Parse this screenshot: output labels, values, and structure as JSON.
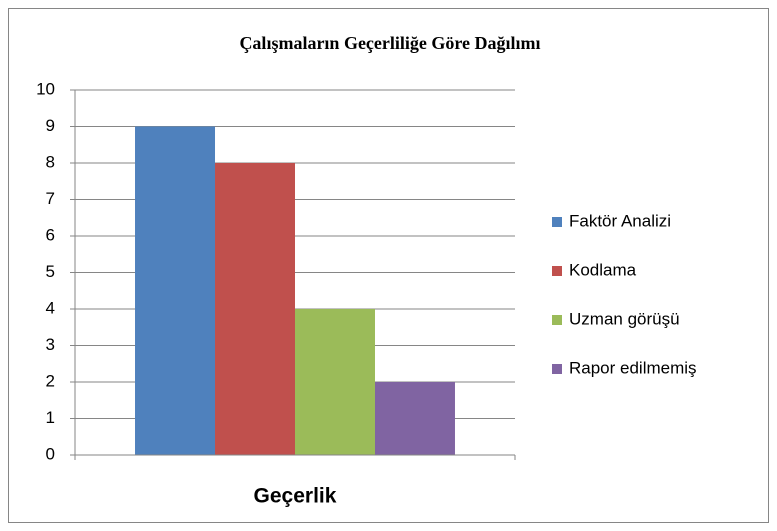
{
  "chart_data": {
    "type": "bar",
    "title": "Çalışmaların  Geçerliliğe Göre Dağılımı",
    "categories": [
      "Geçerlik"
    ],
    "series": [
      {
        "name": "Faktör Analizi",
        "color": "#4f81bd",
        "values": [
          9
        ]
      },
      {
        "name": "Kodlama",
        "color": "#c0504d",
        "values": [
          8
        ]
      },
      {
        "name": "Uzman görüşü",
        "color": "#9bbb59",
        "values": [
          4
        ]
      },
      {
        "name": "Rapor edilmemiş",
        "color": "#8064a2",
        "values": [
          2
        ]
      }
    ],
    "ylim": [
      0,
      10
    ],
    "yticks": [
      0,
      1,
      2,
      3,
      4,
      5,
      6,
      7,
      8,
      9,
      10
    ],
    "grid": true,
    "legend": "right"
  }
}
